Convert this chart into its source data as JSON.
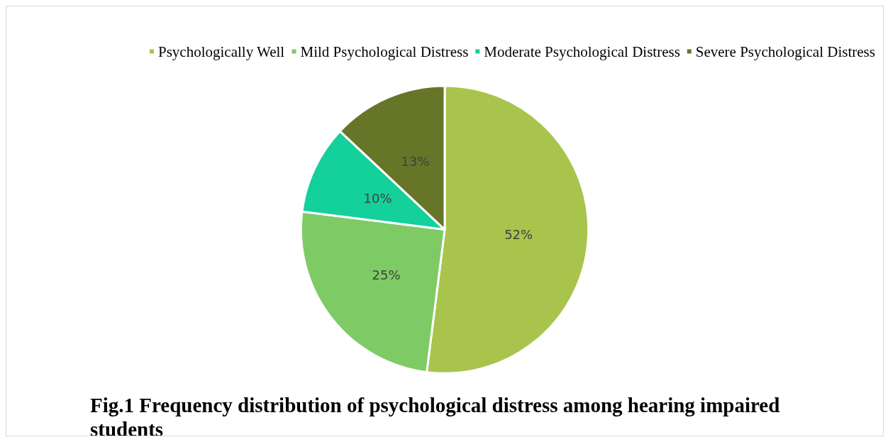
{
  "chart_data": {
    "type": "pie",
    "title": "Fig.1 Frequency distribution of psychological distress among hearing impaired students",
    "categories": [
      "Psychologically Well",
      "Mild Psychological Distress",
      "Moderate Psychological Distress",
      "Severe Psychological Distress"
    ],
    "values": [
      52,
      25,
      10,
      13
    ],
    "colors": [
      "#a9c44c",
      "#7ecb65",
      "#14d09a",
      "#677528"
    ],
    "value_labels": [
      "52%",
      "25%",
      "10%",
      "13%"
    ],
    "legend": "top"
  }
}
